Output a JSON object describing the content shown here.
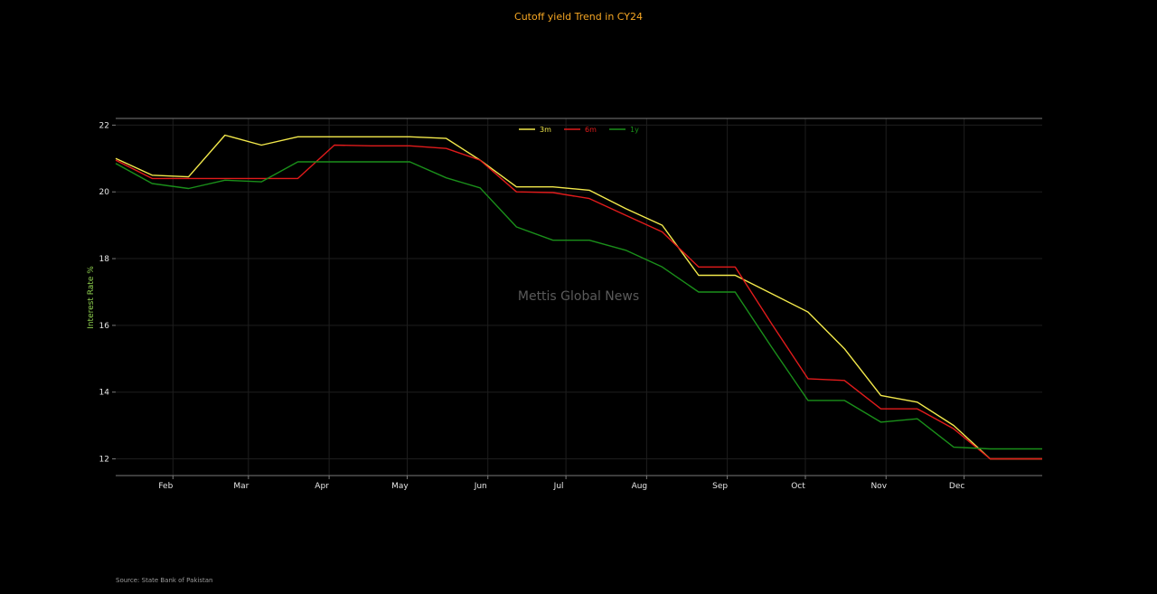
{
  "chart_data": {
    "type": "line",
    "title": "Cutoff yield Trend in CY24",
    "xlabel": "",
    "ylabel": "Interest Rate %",
    "x_tick_labels": [
      "Feb",
      "Mar",
      "Apr",
      "May",
      "Jun",
      "Jul",
      "Aug",
      "Sep",
      "Oct",
      "Nov",
      "Dec"
    ],
    "x_tick_dates": [
      "2024-02-01",
      "2024-03-01",
      "2024-04-01",
      "2024-05-01",
      "2024-06-01",
      "2024-07-01",
      "2024-08-01",
      "2024-09-01",
      "2024-10-01",
      "2024-11-01",
      "2024-12-01"
    ],
    "xlim": [
      "2024-01-10",
      "2024-12-31"
    ],
    "ylim": [
      11.5,
      22.2
    ],
    "y_ticks": [
      12,
      14,
      16,
      18,
      20,
      22
    ],
    "grid": true,
    "legend_position": "top-center",
    "series": [
      {
        "name": "3m",
        "color": "#f2e84b",
        "points": [
          [
            "2024-01-10",
            21.0
          ],
          [
            "2024-01-24",
            20.5
          ],
          [
            "2024-02-07",
            20.45
          ],
          [
            "2024-02-21",
            21.7
          ],
          [
            "2024-03-06",
            21.4
          ],
          [
            "2024-03-20",
            21.65
          ],
          [
            "2024-04-03",
            21.65
          ],
          [
            "2024-04-17",
            21.65
          ],
          [
            "2024-05-02",
            21.65
          ],
          [
            "2024-05-16",
            21.6
          ],
          [
            "2024-05-29",
            20.95
          ],
          [
            "2024-06-12",
            20.15
          ],
          [
            "2024-06-26",
            20.15
          ],
          [
            "2024-07-10",
            20.05
          ],
          [
            "2024-07-24",
            19.5
          ],
          [
            "2024-08-07",
            19.0
          ],
          [
            "2024-08-21",
            17.5
          ],
          [
            "2024-09-04",
            17.5
          ],
          [
            "2024-09-18",
            16.95
          ],
          [
            "2024-10-02",
            16.4
          ],
          [
            "2024-10-16",
            15.3
          ],
          [
            "2024-10-30",
            13.9
          ],
          [
            "2024-11-13",
            13.7
          ],
          [
            "2024-11-27",
            13.0
          ],
          [
            "2024-12-11",
            12.0
          ],
          [
            "2024-12-31",
            12.0
          ]
        ]
      },
      {
        "name": "6m",
        "color": "#e01b1b",
        "points": [
          [
            "2024-01-10",
            20.95
          ],
          [
            "2024-01-24",
            20.4
          ],
          [
            "2024-02-07",
            20.4
          ],
          [
            "2024-02-21",
            20.4
          ],
          [
            "2024-03-06",
            20.4
          ],
          [
            "2024-03-20",
            20.4
          ],
          [
            "2024-04-03",
            21.4
          ],
          [
            "2024-04-17",
            21.38
          ],
          [
            "2024-05-02",
            21.38
          ],
          [
            "2024-05-16",
            21.3
          ],
          [
            "2024-05-29",
            20.95
          ],
          [
            "2024-06-12",
            20.0
          ],
          [
            "2024-06-26",
            19.98
          ],
          [
            "2024-07-10",
            19.8
          ],
          [
            "2024-07-24",
            19.3
          ],
          [
            "2024-08-07",
            18.8
          ],
          [
            "2024-08-21",
            17.75
          ],
          [
            "2024-09-04",
            17.75
          ],
          [
            "2024-09-18",
            16.05
          ],
          [
            "2024-10-02",
            14.4
          ],
          [
            "2024-10-16",
            14.35
          ],
          [
            "2024-10-30",
            13.5
          ],
          [
            "2024-11-13",
            13.5
          ],
          [
            "2024-11-27",
            12.9
          ],
          [
            "2024-12-11",
            12.0
          ],
          [
            "2024-12-31",
            12.0
          ]
        ]
      },
      {
        "name": "1y",
        "color": "#1a8f1a",
        "points": [
          [
            "2024-01-10",
            20.85
          ],
          [
            "2024-01-24",
            20.25
          ],
          [
            "2024-02-07",
            20.1
          ],
          [
            "2024-02-21",
            20.35
          ],
          [
            "2024-03-06",
            20.3
          ],
          [
            "2024-03-20",
            20.9
          ],
          [
            "2024-04-03",
            20.9
          ],
          [
            "2024-04-17",
            20.9
          ],
          [
            "2024-05-02",
            20.9
          ],
          [
            "2024-05-16",
            20.42
          ],
          [
            "2024-05-29",
            20.12
          ],
          [
            "2024-06-12",
            18.95
          ],
          [
            "2024-06-26",
            18.55
          ],
          [
            "2024-07-10",
            18.55
          ],
          [
            "2024-07-24",
            18.25
          ],
          [
            "2024-08-07",
            17.75
          ],
          [
            "2024-08-21",
            17.0
          ],
          [
            "2024-09-04",
            17.0
          ],
          [
            "2024-09-18",
            15.35
          ],
          [
            "2024-10-02",
            13.75
          ],
          [
            "2024-10-16",
            13.75
          ],
          [
            "2024-10-30",
            13.1
          ],
          [
            "2024-11-13",
            13.2
          ],
          [
            "2024-11-27",
            12.35
          ],
          [
            "2024-12-11",
            12.3
          ],
          [
            "2024-12-31",
            12.3
          ]
        ]
      }
    ]
  },
  "watermark": "Mettis Global News",
  "source": "Source: State Bank of Pakistan",
  "colors": {
    "background": "#000000",
    "title": "#f5a623",
    "ylabel": "#8fd14f",
    "grid": "#1e1e1e",
    "spine": "#7a7a7a"
  }
}
